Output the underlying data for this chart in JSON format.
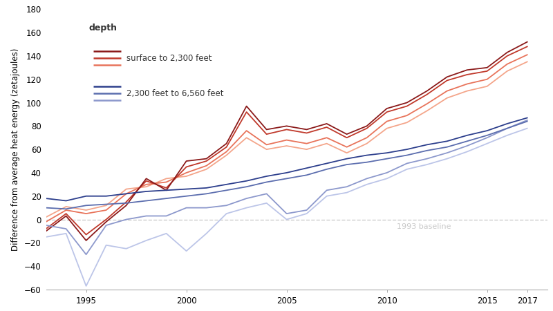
{
  "years": [
    1993,
    1994,
    1995,
    1996,
    1997,
    1998,
    1999,
    2000,
    2001,
    2002,
    2003,
    2004,
    2005,
    2006,
    2007,
    2008,
    2009,
    2010,
    2011,
    2012,
    2013,
    2014,
    2015,
    2016,
    2017
  ],
  "red_series": [
    [
      -10,
      3,
      -18,
      -2,
      12,
      35,
      25,
      50,
      52,
      65,
      97,
      77,
      80,
      77,
      82,
      73,
      80,
      95,
      100,
      110,
      122,
      128,
      130,
      143,
      152
    ],
    [
      -8,
      5,
      -13,
      0,
      15,
      33,
      27,
      45,
      50,
      62,
      92,
      73,
      77,
      74,
      79,
      70,
      78,
      92,
      97,
      107,
      119,
      124,
      127,
      140,
      148
    ],
    [
      -2,
      8,
      5,
      8,
      22,
      30,
      32,
      40,
      46,
      58,
      76,
      64,
      68,
      65,
      70,
      62,
      70,
      84,
      89,
      99,
      110,
      116,
      120,
      133,
      141
    ],
    [
      2,
      11,
      8,
      12,
      26,
      28,
      35,
      37,
      43,
      55,
      70,
      60,
      63,
      60,
      65,
      57,
      65,
      78,
      83,
      93,
      104,
      110,
      114,
      127,
      135
    ]
  ],
  "blue_series": [
    [
      18,
      16,
      20,
      20,
      22,
      24,
      25,
      26,
      27,
      30,
      33,
      37,
      40,
      44,
      48,
      52,
      55,
      57,
      60,
      64,
      67,
      72,
      76,
      82,
      87
    ],
    [
      10,
      9,
      12,
      13,
      14,
      16,
      18,
      20,
      22,
      25,
      28,
      32,
      35,
      38,
      43,
      47,
      49,
      52,
      55,
      59,
      62,
      67,
      72,
      78,
      84
    ],
    [
      -5,
      -8,
      -30,
      -5,
      0,
      3,
      3,
      10,
      10,
      12,
      18,
      22,
      5,
      8,
      25,
      28,
      35,
      40,
      48,
      52,
      57,
      63,
      70,
      78,
      85
    ],
    [
      -15,
      -12,
      -57,
      -22,
      -25,
      -18,
      -12,
      -27,
      -12,
      5,
      10,
      14,
      0,
      5,
      20,
      23,
      30,
      35,
      43,
      47,
      52,
      58,
      65,
      72,
      78
    ]
  ],
  "red_colors": [
    "#8B1A1A",
    "#C0392B",
    "#E8735A",
    "#F4A58A"
  ],
  "blue_colors": [
    "#2C3E8C",
    "#5B6DAE",
    "#8C98CC",
    "#BCC5E8"
  ],
  "baseline_color": "#C8C8C8",
  "baseline_label": "1993 baseline",
  "ylim": [
    -60,
    180
  ],
  "yticks": [
    -60,
    -40,
    -20,
    0,
    20,
    40,
    60,
    80,
    100,
    120,
    140,
    160,
    180
  ],
  "xticks": [
    1995,
    2000,
    2005,
    2010,
    2015,
    2017
  ],
  "ylabel": "Difference from average heat energy (zetajoules)",
  "legend_title": "depth",
  "legend_red_label": "surface to 2,300 feet",
  "legend_blue_label": "2,300 feet to 6,560 feet",
  "background_color": "#FFFFFF",
  "linewidth": 1.3
}
